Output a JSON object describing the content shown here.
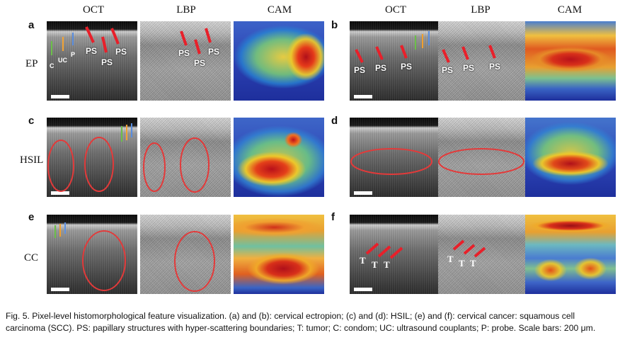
{
  "column_headers": [
    "OCT",
    "LBP",
    "CAM"
  ],
  "panels": [
    {
      "letter": "a",
      "row_label": "EP",
      "annotations": [
        "PS",
        "PS",
        "PS"
      ],
      "side_labels": [
        "C",
        "UC",
        "P"
      ]
    },
    {
      "letter": "b",
      "row_label": "",
      "annotations": [
        "PS",
        "PS",
        "PS"
      ],
      "lbp_annotations": [
        "PS",
        "PS",
        "PS"
      ]
    },
    {
      "letter": "c",
      "row_label": "HSIL"
    },
    {
      "letter": "d",
      "row_label": ""
    },
    {
      "letter": "e",
      "row_label": "CC"
    },
    {
      "letter": "f",
      "row_label": "",
      "annotations": [
        "T",
        "T",
        "T"
      ],
      "lbp_annotations": [
        "T",
        "T",
        "T"
      ]
    }
  ],
  "panel_a_lbp_labels": [
    "PS",
    "PS",
    "PS"
  ],
  "caption": {
    "line1": "Fig. 5.   Pixel-level histomorphological feature visualization. (a) and (b): cervical ectropion; (c) and (d): HSIL; (e) and (f): cervical cancer: squamous cell",
    "line2": "carcinoma (SCC). PS: papillary structures with hyper-scattering boundaries; T: tumor; C: condom; UC: ultrasound couplants; P: probe. Scale bars: 200 μm."
  },
  "colors": {
    "arrow_red": "#e8202a",
    "ellipse_red": "#e33a3a",
    "arrow_green": "#6cc04a",
    "arrow_orange": "#f0a030",
    "arrow_blue": "#5a8ee0",
    "cam_low": "#1e2f9c",
    "cam_high": "#c8101a"
  }
}
